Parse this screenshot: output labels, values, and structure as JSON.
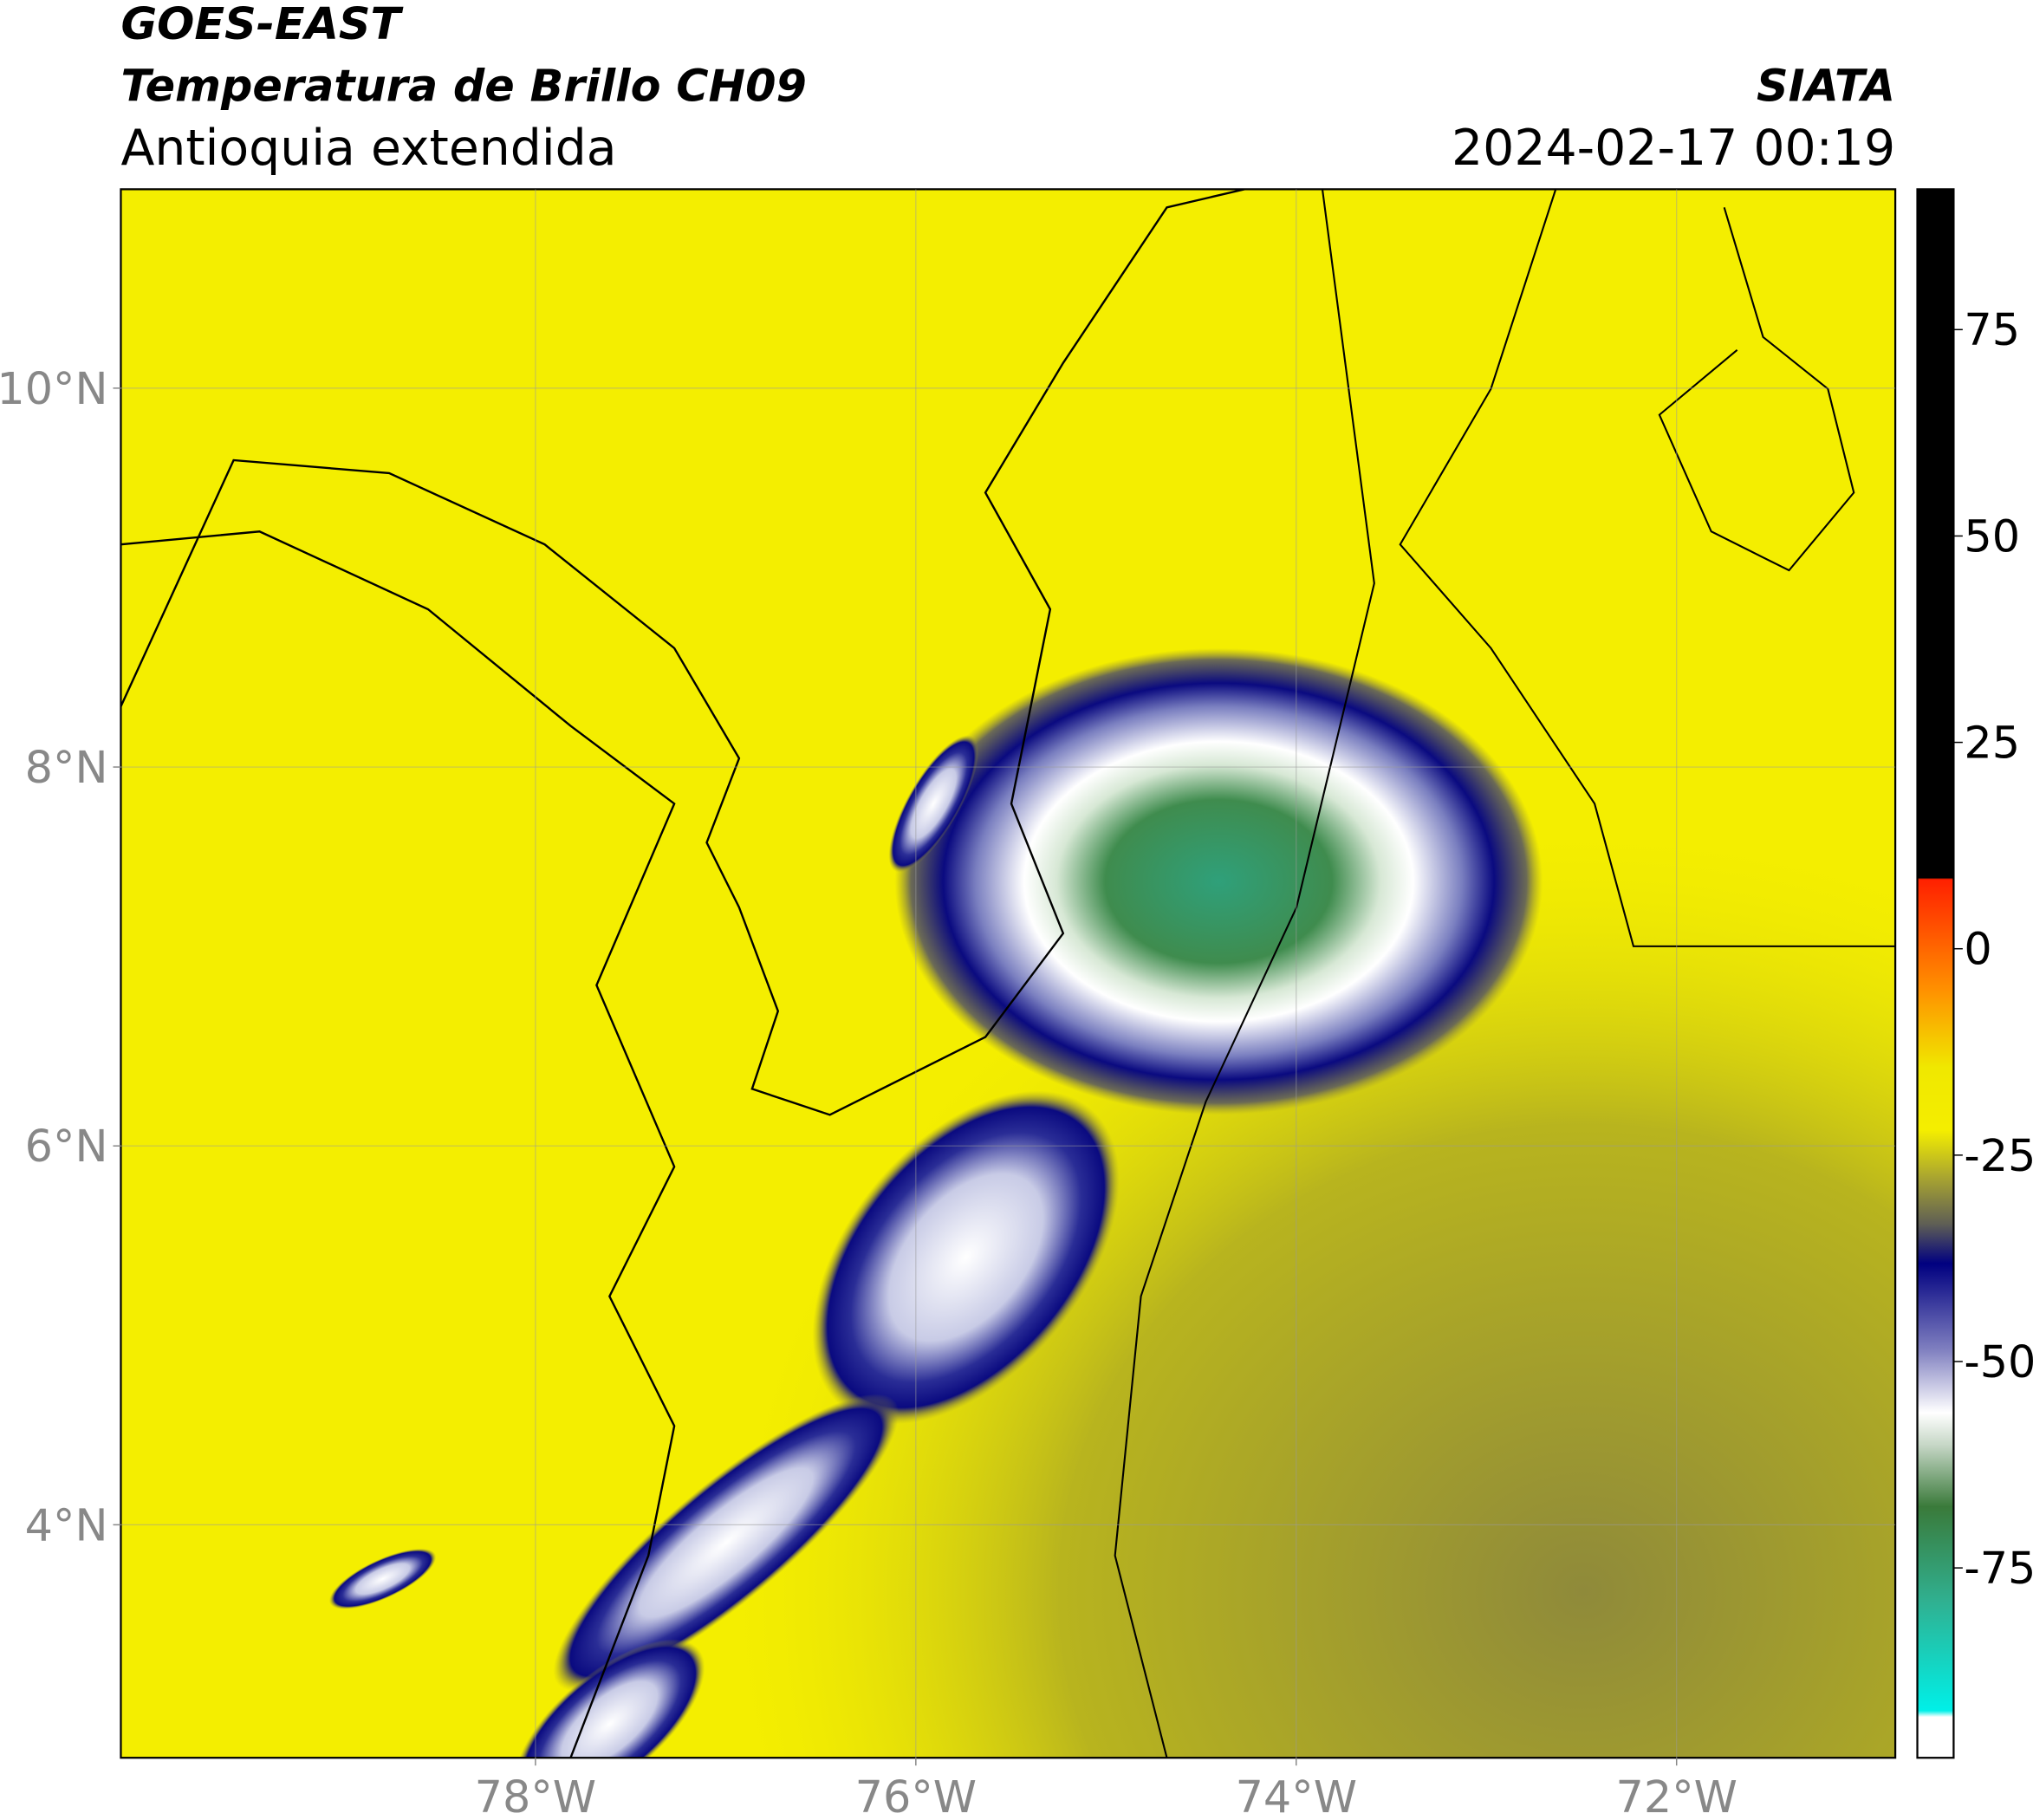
{
  "header": {
    "title": "GOES-EAST",
    "subtitle": "Temperatura de Brillo CH09",
    "region": "Antioquia extendida",
    "source": "SIATA",
    "datetime": "2024-02-17 00:19"
  },
  "map": {
    "xlim": [
      -80.18,
      -70.85
    ],
    "ylim": [
      2.77,
      11.05
    ],
    "xticks": [
      {
        "value": -78,
        "label": "78°W"
      },
      {
        "value": -76,
        "label": "76°W"
      },
      {
        "value": -74,
        "label": "74°W"
      },
      {
        "value": -72,
        "label": "72°W"
      }
    ],
    "yticks": [
      {
        "value": 10,
        "label": "10°N"
      },
      {
        "value": 8,
        "label": "8°N"
      },
      {
        "value": 6,
        "label": "6°N"
      },
      {
        "value": 4,
        "label": "4°N"
      }
    ],
    "grid": true
  },
  "colorbar": {
    "lim": [
      -98,
      92
    ],
    "ticks": [
      75,
      50,
      25,
      0,
      -25,
      -50,
      -75
    ]
  }
}
